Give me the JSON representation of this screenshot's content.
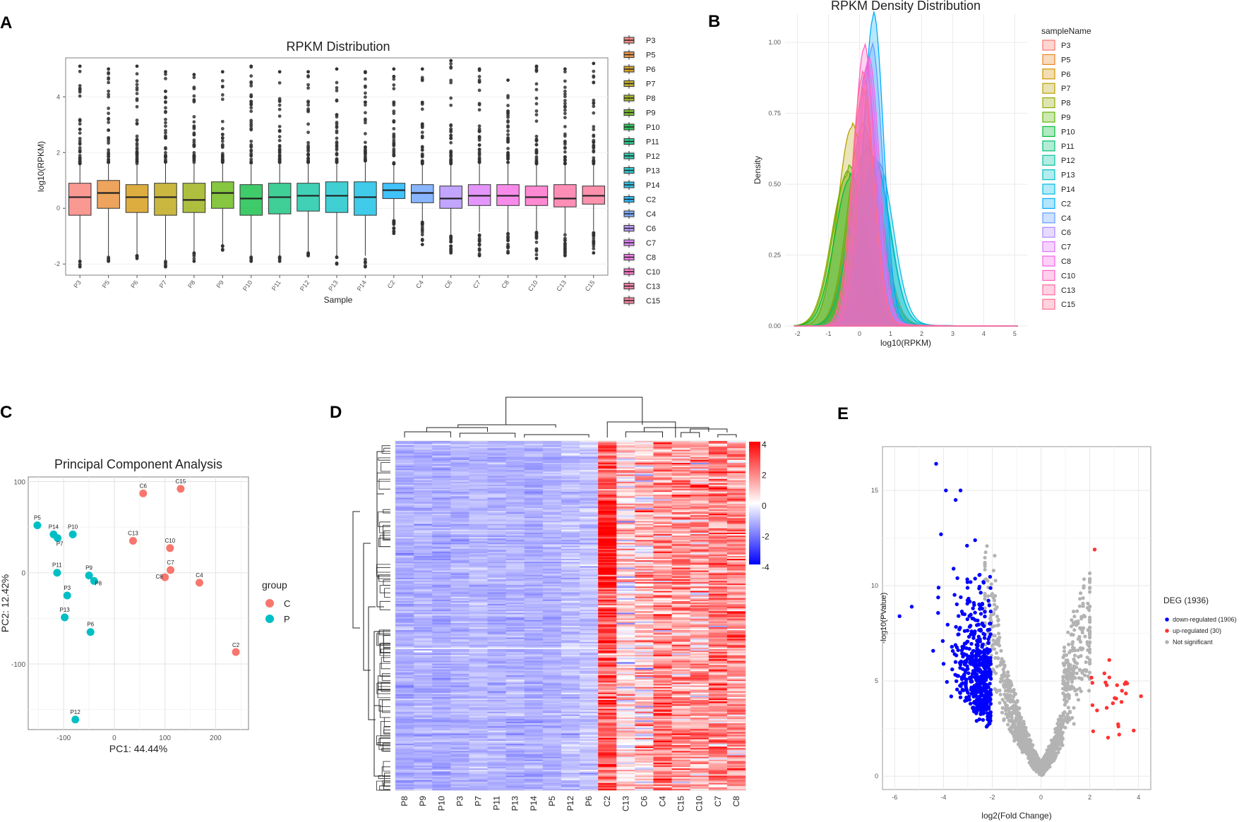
{
  "panel_labels": [
    "A",
    "B",
    "C",
    "D",
    "E"
  ],
  "chart_data": [
    {
      "panel": "A",
      "type": "box",
      "title": "RPKM Distribution",
      "xlabel": "Sample",
      "ylabel": "log10(RPKM)",
      "ylim": [
        -2.4,
        5.4
      ],
      "yticks": [
        -2,
        0,
        2,
        4
      ],
      "categories": [
        "P3",
        "P5",
        "P6",
        "P7",
        "P8",
        "P9",
        "P10",
        "P11",
        "P12",
        "P13",
        "P14",
        "C2",
        "C4",
        "C6",
        "C7",
        "C8",
        "C10",
        "C13",
        "C15"
      ],
      "colors": [
        "#F8766D",
        "#E88526",
        "#D39200",
        "#B79F00",
        "#93AA00",
        "#5EB300",
        "#00BA38",
        "#00BF74",
        "#00C19F",
        "#00BFC4",
        "#00B9E3",
        "#00ADFA",
        "#619CFF",
        "#AE87FF",
        "#DB72FB",
        "#F564E3",
        "#FF61C3",
        "#FF689E",
        "#FF6C91"
      ],
      "boxes": [
        {
          "q1": -0.25,
          "median": 0.4,
          "q3": 0.9,
          "wlo": -1.85,
          "whi": 1.55,
          "omax": 5.1,
          "omin": -2.1
        },
        {
          "q1": 0.0,
          "median": 0.55,
          "q3": 1.0,
          "wlo": -1.7,
          "whi": 1.6,
          "omax": 5.0,
          "omin": -1.9
        },
        {
          "q1": -0.15,
          "median": 0.4,
          "q3": 0.85,
          "wlo": -1.65,
          "whi": 1.55,
          "omax": 5.1,
          "omin": -1.8
        },
        {
          "q1": -0.25,
          "median": 0.4,
          "q3": 0.9,
          "wlo": -1.85,
          "whi": 1.6,
          "omax": 4.9,
          "omin": -2.1
        },
        {
          "q1": -0.15,
          "median": 0.3,
          "q3": 0.9,
          "wlo": -1.55,
          "whi": 1.6,
          "omax": 4.8,
          "omin": -1.9
        },
        {
          "q1": 0.0,
          "median": 0.55,
          "q3": 0.95,
          "wlo": -1.3,
          "whi": 1.6,
          "omax": 4.9,
          "omin": -1.5
        },
        {
          "q1": -0.25,
          "median": 0.35,
          "q3": 0.85,
          "wlo": -1.7,
          "whi": 1.55,
          "omax": 5.1,
          "omin": -1.9
        },
        {
          "q1": -0.2,
          "median": 0.4,
          "q3": 0.9,
          "wlo": -1.7,
          "whi": 1.6,
          "omax": 4.9,
          "omin": -1.9
        },
        {
          "q1": -0.1,
          "median": 0.45,
          "q3": 0.9,
          "wlo": -1.55,
          "whi": 1.6,
          "omax": 4.9,
          "omin": -1.7
        },
        {
          "q1": -0.15,
          "median": 0.45,
          "q3": 0.95,
          "wlo": -1.7,
          "whi": 1.6,
          "omax": 5.0,
          "omin": -2.0
        },
        {
          "q1": -0.25,
          "median": 0.4,
          "q3": 0.95,
          "wlo": -1.7,
          "whi": 1.65,
          "omax": 4.9,
          "omin": -2.1
        },
        {
          "q1": 0.35,
          "median": 0.65,
          "q3": 0.9,
          "wlo": -0.4,
          "whi": 1.55,
          "omax": 5.0,
          "omin": -0.9
        },
        {
          "q1": 0.2,
          "median": 0.55,
          "q3": 0.85,
          "wlo": -0.45,
          "whi": 1.55,
          "omax": 5.0,
          "omin": -1.3
        },
        {
          "q1": 0.0,
          "median": 0.35,
          "q3": 0.8,
          "wlo": -0.95,
          "whi": 1.55,
          "omax": 5.3,
          "omin": -1.6
        },
        {
          "q1": 0.1,
          "median": 0.45,
          "q3": 0.85,
          "wlo": -0.85,
          "whi": 1.6,
          "omax": 5.0,
          "omin": -1.7
        },
        {
          "q1": 0.1,
          "median": 0.45,
          "q3": 0.85,
          "wlo": -0.85,
          "whi": 1.6,
          "omax": 4.6,
          "omin": -1.6
        },
        {
          "q1": 0.1,
          "median": 0.4,
          "q3": 0.8,
          "wlo": -0.8,
          "whi": 1.55,
          "omax": 5.1,
          "omin": -1.8
        },
        {
          "q1": 0.05,
          "median": 0.35,
          "q3": 0.85,
          "wlo": -0.9,
          "whi": 1.55,
          "omax": 5.0,
          "omin": -1.7
        },
        {
          "q1": 0.15,
          "median": 0.45,
          "q3": 0.8,
          "wlo": -0.8,
          "whi": 1.55,
          "omax": 5.2,
          "omin": -1.6
        }
      ]
    },
    {
      "panel": "B",
      "type": "area",
      "title": "RPKM Density Distribution",
      "xlabel": "log10(RPKM)",
      "ylabel": "Density",
      "xlim": [
        -2.4,
        5.4
      ],
      "ylim": [
        0,
        1.1
      ],
      "xticks": [
        -2,
        -1,
        0,
        1,
        2,
        3,
        4,
        5
      ],
      "yticks": [
        0,
        0.25,
        0.5,
        0.75,
        1.0
      ],
      "ytick_labels": [
        "0.00",
        "0.25",
        "0.50",
        "0.75",
        "1.00"
      ],
      "legend_title": "sampleName",
      "series": [
        {
          "name": "P3",
          "peak_x": 0.15,
          "peak": 0.68,
          "sd": 0.48
        },
        {
          "name": "P5",
          "peak_x": 0.25,
          "peak": 0.62,
          "sd": 0.5
        },
        {
          "name": "P6",
          "peak_x": 0.1,
          "peak": 0.7,
          "sd": 0.47
        },
        {
          "name": "P7",
          "peak_x": -0.25,
          "peak": 0.7,
          "sd": 0.45
        },
        {
          "name": "P8",
          "peak_x": -0.4,
          "peak": 0.53,
          "sd": 0.5
        },
        {
          "name": "P9",
          "peak_x": -0.35,
          "peak": 0.55,
          "sd": 0.5
        },
        {
          "name": "P10",
          "peak_x": -0.3,
          "peak": 0.52,
          "sd": 0.5
        },
        {
          "name": "P11",
          "peak_x": 0.2,
          "peak": 0.62,
          "sd": 0.5
        },
        {
          "name": "P12",
          "peak_x": 0.5,
          "peak": 0.57,
          "sd": 0.48
        },
        {
          "name": "P13",
          "peak_x": 0.45,
          "peak": 0.58,
          "sd": 0.5
        },
        {
          "name": "P14",
          "peak_x": 0.6,
          "peak": 0.56,
          "sd": 0.48
        },
        {
          "name": "C2",
          "peak_x": 0.45,
          "peak": 1.09,
          "sd": 0.32
        },
        {
          "name": "C4",
          "peak_x": 0.4,
          "peak": 0.98,
          "sd": 0.33
        },
        {
          "name": "C6",
          "peak_x": 0.2,
          "peak": 0.9,
          "sd": 0.35
        },
        {
          "name": "C7",
          "peak_x": 0.25,
          "peak": 0.92,
          "sd": 0.34
        },
        {
          "name": "C8",
          "peak_x": 0.3,
          "peak": 0.93,
          "sd": 0.34
        },
        {
          "name": "C10",
          "peak_x": 0.15,
          "peak": 0.98,
          "sd": 0.33
        },
        {
          "name": "C13",
          "peak_x": 0.1,
          "peak": 0.88,
          "sd": 0.35
        },
        {
          "name": "C15",
          "peak_x": 0.1,
          "peak": 0.82,
          "sd": 0.36
        }
      ]
    },
    {
      "panel": "C",
      "type": "scatter",
      "title": "Principal Component Analysis",
      "xlabel": "PC1: 44.44%",
      "ylabel": "PC2: 12.42%",
      "xlim": [
        -170,
        265
      ],
      "ylim": [
        -172,
        105
      ],
      "xticks": [
        -100,
        0,
        100,
        200
      ],
      "yticks": [
        -100,
        0,
        100
      ],
      "legend_title": "group",
      "groups": [
        {
          "name": "C",
          "color": "#F8766D"
        },
        {
          "name": "P",
          "color": "#00BFC4"
        }
      ],
      "points": [
        {
          "label": "P5",
          "group": "P",
          "x": -152,
          "y": 52
        },
        {
          "label": "P14",
          "group": "P",
          "x": -120,
          "y": 42
        },
        {
          "label": "P7",
          "group": "P",
          "x": -112,
          "y": 38
        },
        {
          "label": "P10",
          "group": "P",
          "x": -82,
          "y": 42
        },
        {
          "label": "P11",
          "group": "P",
          "x": -113,
          "y": 0
        },
        {
          "label": "P9",
          "group": "P",
          "x": -50,
          "y": -3
        },
        {
          "label": "P8",
          "group": "P",
          "x": -40,
          "y": -9
        },
        {
          "label": "P3",
          "group": "P",
          "x": -93,
          "y": -25
        },
        {
          "label": "P13",
          "group": "P",
          "x": -98,
          "y": -49
        },
        {
          "label": "P6",
          "group": "P",
          "x": -47,
          "y": -65
        },
        {
          "label": "P12",
          "group": "P",
          "x": -77,
          "y": -161
        },
        {
          "label": "C6",
          "group": "C",
          "x": 57,
          "y": 87
        },
        {
          "label": "C15",
          "group": "C",
          "x": 131,
          "y": 92
        },
        {
          "label": "C13",
          "group": "C",
          "x": 37,
          "y": 35
        },
        {
          "label": "C10",
          "group": "C",
          "x": 110,
          "y": 27
        },
        {
          "label": "C7",
          "group": "C",
          "x": 111,
          "y": 3
        },
        {
          "label": "C8",
          "group": "C",
          "x": 100,
          "y": -5
        },
        {
          "label": "C4",
          "group": "C",
          "x": 168,
          "y": -11
        },
        {
          "label": "C2",
          "group": "C",
          "x": 240,
          "y": -87
        }
      ]
    },
    {
      "panel": "D",
      "type": "heatmap",
      "columns": [
        "P8",
        "P9",
        "P10",
        "P3",
        "P7",
        "P11",
        "P13",
        "P14",
        "P5",
        "P12",
        "P6",
        "C2",
        "C13",
        "C6",
        "C4",
        "C15",
        "C10",
        "C7",
        "C8"
      ],
      "scale_ticks": [
        "4",
        "2",
        "0",
        "-2",
        "-4"
      ],
      "scale_min": -4,
      "scale_max": 4,
      "column_base_values": [
        -1.3,
        -1.2,
        -1.3,
        -1.2,
        -1.1,
        -1.2,
        -1.2,
        -1.3,
        -1.2,
        -1.0,
        -0.9,
        2.6,
        0.5,
        0.9,
        1.6,
        1.6,
        1.3,
        2.0,
        1.7
      ],
      "column_sd": [
        0.25,
        0.25,
        0.25,
        0.25,
        0.25,
        0.25,
        0.25,
        0.25,
        0.25,
        0.3,
        0.3,
        0.9,
        1.0,
        1.1,
        1.1,
        1.0,
        1.0,
        1.0,
        1.0
      ]
    },
    {
      "panel": "E",
      "type": "scatter",
      "xlabel": "log2(Fold Change)",
      "ylabel": "-log10(PValue)",
      "xlim": [
        -6.5,
        4.5
      ],
      "ylim": [
        -0.7,
        17.3
      ],
      "xticks": [
        -6,
        -4,
        -2,
        0,
        2,
        4
      ],
      "yticks": [
        0,
        5,
        10,
        15
      ],
      "legend_title": "DEG (1936)",
      "legend": [
        {
          "label": "down-regulated (1906)",
          "color": "#0000FF"
        },
        {
          "label": "up-regulated (30)",
          "color": "#FF3333"
        },
        {
          "label": "Not significant",
          "color": "#B3B3B3"
        }
      ],
      "counts": {
        "down": 1906,
        "up": 30
      },
      "highlight_points": [
        {
          "x": -4.3,
          "y": 16.4
        },
        {
          "x": -3.9,
          "y": 15.0
        },
        {
          "x": -3.3,
          "y": 15.0
        },
        {
          "x": -3.5,
          "y": 14.5
        },
        {
          "x": -4.1,
          "y": 12.7
        },
        {
          "x": -5.8,
          "y": 8.4
        },
        {
          "x": -5.3,
          "y": 8.9
        },
        {
          "x": -4.2,
          "y": 9.9
        },
        {
          "x": 2.2,
          "y": 11.9
        },
        {
          "x": 2.8,
          "y": 6.1
        },
        {
          "x": 4.1,
          "y": 4.2
        },
        {
          "x": 3.8,
          "y": 2.4
        },
        {
          "x": 3.3,
          "y": 3.9
        },
        {
          "x": 2.6,
          "y": 5.4
        }
      ]
    }
  ]
}
